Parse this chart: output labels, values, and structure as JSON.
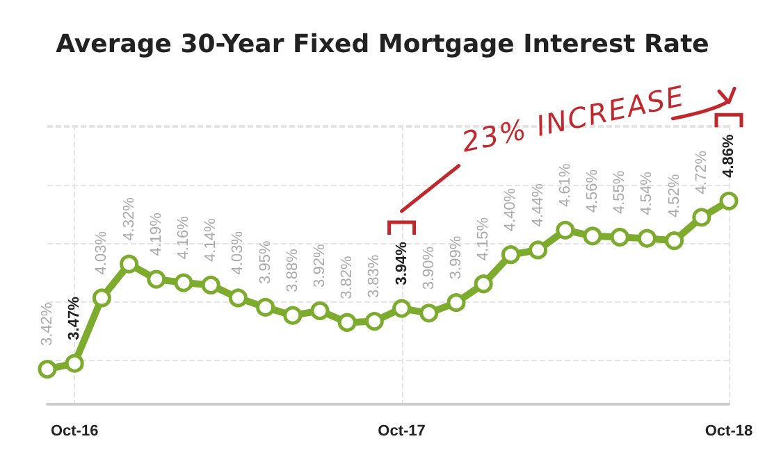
{
  "chart_data": {
    "type": "line",
    "title": "Average 30-Year Fixed Mortgage Interest Rate",
    "categories": [
      null,
      "Oct-16",
      null,
      null,
      null,
      null,
      null,
      null,
      null,
      null,
      null,
      null,
      null,
      "Oct-17",
      null,
      null,
      null,
      null,
      null,
      null,
      null,
      null,
      null,
      null,
      null,
      "Oct-18"
    ],
    "series": [
      {
        "color": "#7cab2e",
        "values": [
          3.42,
          3.47,
          4.03,
          4.32,
          4.19,
          4.16,
          4.14,
          4.03,
          3.95,
          3.88,
          3.92,
          3.82,
          3.83,
          3.94,
          3.9,
          3.99,
          4.15,
          4.4,
          4.44,
          4.61,
          4.56,
          4.55,
          4.54,
          4.52,
          4.72,
          4.86
        ],
        "value_labels": [
          "3.42%",
          "3.47%",
          "4.03%",
          "4.32%",
          "4.19%",
          "4.16%",
          "4.14%",
          "4.03%",
          "3.95%",
          "3.88%",
          "3.92%",
          "3.82%",
          "3.83%",
          "3.94%",
          "3.90%",
          "3.99%",
          "4.15%",
          "4.40%",
          "4.44%",
          "4.61%",
          "4.56%",
          "4.55%",
          "4.54%",
          "4.52%",
          "4.72%",
          "4.86%"
        ]
      }
    ],
    "annotations": [
      "23% INCREASE"
    ],
    "grid": true,
    "marker": "circle",
    "line_style": "solid",
    "tick_labels": "x"
  }
}
